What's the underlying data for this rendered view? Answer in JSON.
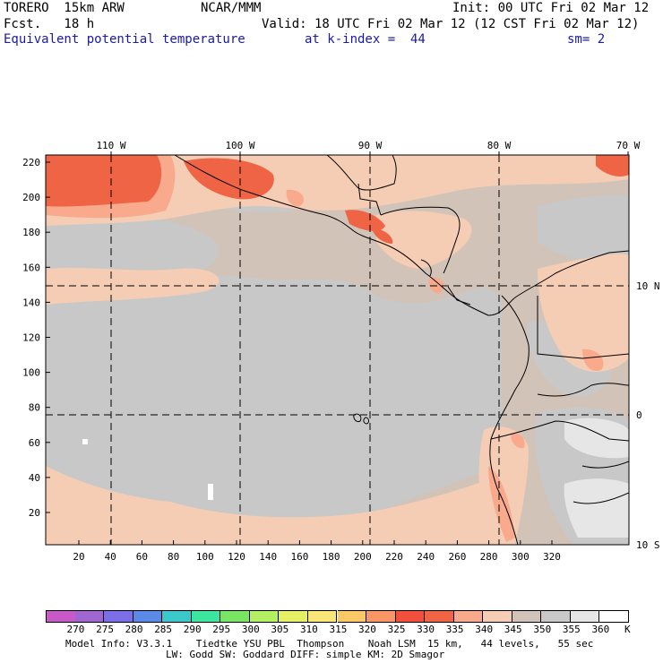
{
  "header": {
    "model": "TORERO  15km ARW",
    "org": "NCAR/MMM",
    "init": "Init: 00 UTC Fri 02 Mar 12",
    "fcst": "Fcst.   18 h",
    "valid": "Valid: 18 UTC Fri 02 Mar 12 (12 CST Fri 02 Mar 12)",
    "field": "Equivalent potential temperature",
    "level": "at k-index =  44",
    "smooth": "sm= 2"
  },
  "axes": {
    "top_lon": [
      "110 W",
      "100 W",
      "90 W",
      "80 W",
      "70 W"
    ],
    "right_lat": [
      "10 N",
      "0",
      "10 S"
    ],
    "left_y": [
      "220",
      "200",
      "180",
      "160",
      "140",
      "120",
      "100",
      "80",
      "60",
      "40",
      "20"
    ],
    "bottom_x": [
      "20",
      "40",
      "60",
      "80",
      "100",
      "120",
      "140",
      "160",
      "180",
      "200",
      "220",
      "240",
      "260",
      "280",
      "300",
      "320"
    ]
  },
  "colorbar": {
    "labels": [
      "270",
      "275",
      "280",
      "285",
      "290",
      "295",
      "300",
      "305",
      "310",
      "315",
      "320",
      "325",
      "330",
      "335",
      "340",
      "345",
      "350",
      "355",
      "360"
    ],
    "unit": "K",
    "colors": [
      "#c85ac8",
      "#a066d2",
      "#7c6ee6",
      "#5a8ae6",
      "#3cc8c8",
      "#3ce6a0",
      "#78e664",
      "#b4f064",
      "#e6f064",
      "#fae678",
      "#fac864",
      "#fa9664",
      "#f0503c",
      "#f06446",
      "#faaa8c",
      "#f5cdb4",
      "#d2c3b9",
      "#c8c8c8",
      "#e6e6e6",
      "#ffffff"
    ]
  },
  "footer": {
    "line1": "Model Info: V3.3.1    Tiedtke YSU PBL  Thompson    Noah LSM  15 km,   44 levels,   55 sec",
    "line2": "LW: Godd SW: Goddard DIFF: simple KM: 2D Smagor"
  }
}
